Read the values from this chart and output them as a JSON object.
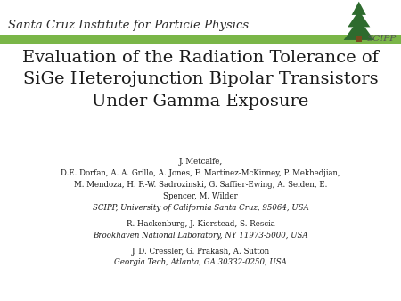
{
  "background_color": "#ffffff",
  "header_bar_color": "#7ab648",
  "header_text": "Santa Cruz Institute for Particle Physics",
  "header_font_size": 9.5,
  "header_text_color": "#2a2a2a",
  "title_line1": "Evaluation of the Radiation Tolerance of",
  "title_line2": "SiGe Heterojunction Bipolar Transistors",
  "title_line3": "Under Gamma Exposure",
  "title_font_size": 14,
  "title_color": "#1a1a1a",
  "authors_line1": "J. Metcalfe,",
  "authors_line2": "D.E. Dorfan, A. A. Grillo, A. Jones, F. Martinez-McKinney, P. Mekhedjian,",
  "authors_line3": "M. Mendoza, H. F.-W. Sadrozinski, G. Saffier-Ewing, A. Seiden, E.",
  "authors_line4": "Spencer, M. Wilder",
  "authors_affil1": "SCIPP, University of California Santa Cruz, 95064, USA",
  "authors_font_size": 6.2,
  "authors_color": "#1a1a1a",
  "affil_font_size": 6.2,
  "affil_color": "#1a1a1a",
  "group2_authors": "R. Hackenburg, J. Kierstead, S. Rescia",
  "group2_affil": "Brookhaven National Laboratory, NY 11973-5000, USA",
  "group3_authors": "J. D. Cressler, G. Prakash, A. Sutton",
  "group3_affil": "Georgia Tech, Atlanta, GA 30332-0250, USA",
  "scipp_text": "SC",
  "scipp_pp": "PP"
}
